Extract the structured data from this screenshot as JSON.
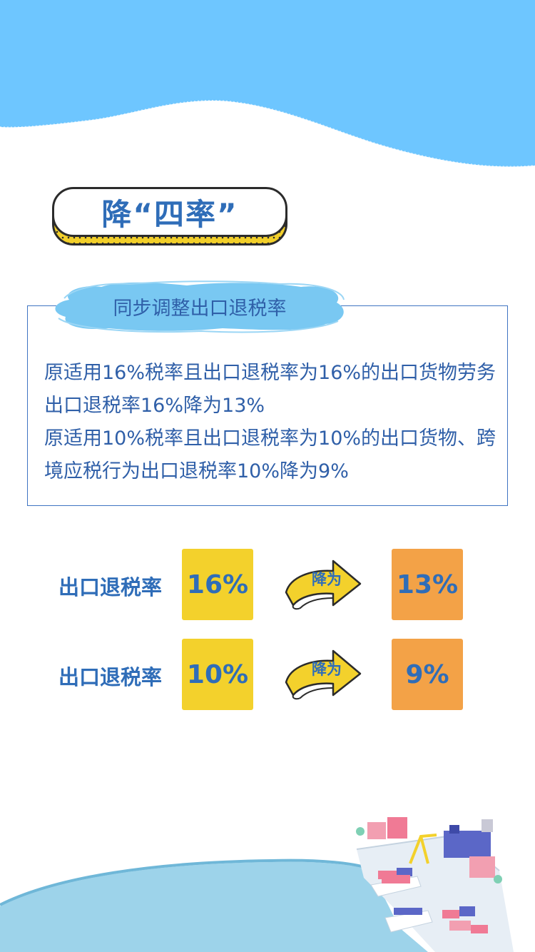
{
  "title": "降“四率”",
  "subhead": "同步调整出口退税率",
  "paragraphs": [
    "原适用16%税率且出口退税率为16%的出口货物劳务出口退税率16%降为13%",
    "原适用10%税率且出口退税率为10%的出口货物、跨境应税行为出口退税率10%降为9%"
  ],
  "rows": [
    {
      "label": "出口退税率",
      "from": "16%",
      "arrow": "降为",
      "to": "13%"
    },
    {
      "label": "出口退税率",
      "from": "10%",
      "arrow": "降为",
      "to": "9%"
    }
  ],
  "colors": {
    "sky": "#6ec6ff",
    "blue_text": "#2f6db8",
    "yellow": "#f3d12c",
    "orange": "#f3a247",
    "sea": "#9dd3ea"
  }
}
